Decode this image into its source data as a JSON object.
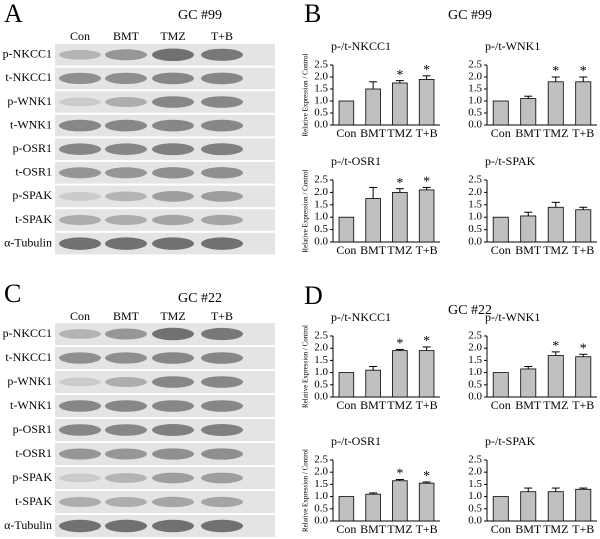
{
  "figure": {
    "panels": [
      {
        "letter": "A",
        "title": "GC #99",
        "lanes": [
          "Con",
          "BMT",
          "TMZ",
          "T+B"
        ],
        "rows": [
          "p-NKCC1",
          "t-NKCC1",
          "p-WNK1",
          "t-WNK1",
          "p-OSR1",
          "t-OSR1",
          "p-SPAK",
          "t-SPAK",
          "α-Tubulin"
        ]
      },
      {
        "letter": "B",
        "title": "GC #99"
      },
      {
        "letter": "C",
        "title": "GC #22",
        "lanes": [
          "Con",
          "BMT",
          "TMZ",
          "T+B"
        ],
        "rows": [
          "p-NKCC1",
          "t-NKCC1",
          "p-WNK1",
          "t-WNK1",
          "p-OSR1",
          "t-OSR1",
          "p-SPAK",
          "t-SPAK",
          "α-Tubulin"
        ]
      },
      {
        "letter": "D",
        "title": "GC #22"
      }
    ]
  },
  "chart_data": [
    {
      "type": "bar",
      "title": "p-/t-NKCC1",
      "ylabel": "Relative Expression / Control",
      "categories": [
        "Con",
        "BMT",
        "TMZ",
        "T+B"
      ],
      "values": [
        1.0,
        1.5,
        1.75,
        1.9
      ],
      "errors": [
        null,
        0.3,
        0.1,
        0.15
      ],
      "annotations": [
        null,
        null,
        "*",
        "*"
      ],
      "color": "#c0c0c0",
      "ylim": [
        0,
        2.5
      ],
      "yticks": [
        {
          "value": 0,
          "label": "0.0"
        },
        {
          "value": 0.5,
          "label": "0.5"
        },
        {
          "value": 1,
          "label": "1.0"
        },
        {
          "value": 1.5,
          "label": "1.5"
        },
        {
          "value": 2,
          "label": "2.0"
        },
        {
          "value": 2.5,
          "label": "2.5"
        }
      ]
    },
    {
      "type": "bar",
      "title": "p-/t-WNK1",
      "categories": [
        "Con",
        "BMT",
        "TMZ",
        "T+B"
      ],
      "values": [
        1.0,
        1.1,
        1.8,
        1.8
      ],
      "errors": [
        null,
        0.1,
        0.2,
        0.2
      ],
      "annotations": [
        null,
        null,
        "*",
        "*"
      ],
      "color": "#c0c0c0",
      "ylim": [
        0,
        2.5
      ],
      "yticks": [
        {
          "value": 0,
          "label": "0.0"
        },
        {
          "value": 0.5,
          "label": "0.5"
        },
        {
          "value": 1,
          "label": "1.0"
        },
        {
          "value": 1.5,
          "label": "1.5"
        },
        {
          "value": 2,
          "label": "2.0"
        },
        {
          "value": 2.5,
          "label": "2.5"
        }
      ]
    },
    {
      "type": "bar",
      "title": "p-/t-OSR1",
      "ylabel": "Relative Expression / Control",
      "categories": [
        "Con",
        "BMT",
        "TMZ",
        "T+B"
      ],
      "values": [
        1.0,
        1.75,
        2.0,
        2.1
      ],
      "errors": [
        null,
        0.45,
        0.15,
        0.1
      ],
      "annotations": [
        null,
        null,
        "*",
        "*"
      ],
      "color": "#c0c0c0",
      "ylim": [
        0,
        2.5
      ],
      "yticks": [
        {
          "value": 0,
          "label": "0.0"
        },
        {
          "value": 0.5,
          "label": "0.5"
        },
        {
          "value": 1,
          "label": "1.0"
        },
        {
          "value": 1.5,
          "label": "1.5"
        },
        {
          "value": 2,
          "label": "2.0"
        },
        {
          "value": 2.5,
          "label": "2.5"
        }
      ]
    },
    {
      "type": "bar",
      "title": "p-/t-SPAK",
      "categories": [
        "Con",
        "BMT",
        "TMZ",
        "T+B"
      ],
      "values": [
        1.0,
        1.05,
        1.4,
        1.3
      ],
      "errors": [
        null,
        0.15,
        0.2,
        0.1
      ],
      "annotations": [
        null,
        null,
        null,
        null
      ],
      "color": "#c0c0c0",
      "ylim": [
        0,
        2.5
      ],
      "yticks": [
        {
          "value": 0,
          "label": "0.0"
        },
        {
          "value": 0.5,
          "label": "0.5"
        },
        {
          "value": 1,
          "label": "1.0"
        },
        {
          "value": 1.5,
          "label": "1.5"
        },
        {
          "value": 2,
          "label": "2.0"
        },
        {
          "value": 2.5,
          "label": "2.5"
        }
      ]
    },
    {
      "type": "bar",
      "title": "p-/t-NKCC1",
      "ylabel": "Relative Expression / Control",
      "categories": [
        "Con",
        "BMT",
        "TMZ",
        "T+B"
      ],
      "values": [
        1.0,
        1.1,
        1.9,
        1.9
      ],
      "errors": [
        null,
        0.15,
        0.05,
        0.15
      ],
      "annotations": [
        null,
        null,
        "*",
        "*"
      ],
      "color": "#c0c0c0",
      "ylim": [
        0,
        2.5
      ],
      "yticks": [
        {
          "value": 0,
          "label": "0.0"
        },
        {
          "value": 0.5,
          "label": "0.5"
        },
        {
          "value": 1,
          "label": "1.0"
        },
        {
          "value": 1.5,
          "label": "1.5"
        },
        {
          "value": 2,
          "label": "2.0"
        },
        {
          "value": 2.5,
          "label": "2.5"
        }
      ]
    },
    {
      "type": "bar",
      "title": "p-/t-WNK1",
      "categories": [
        "Con",
        "BMT",
        "TMZ",
        "T+B"
      ],
      "values": [
        1.0,
        1.15,
        1.7,
        1.65
      ],
      "errors": [
        null,
        0.1,
        0.15,
        0.1
      ],
      "annotations": [
        null,
        null,
        "*",
        "*"
      ],
      "color": "#c0c0c0",
      "ylim": [
        0,
        2.5
      ],
      "yticks": [
        {
          "value": 0,
          "label": "0.0"
        },
        {
          "value": 0.5,
          "label": "0.5"
        },
        {
          "value": 1,
          "label": "1.0"
        },
        {
          "value": 1.5,
          "label": "1.5"
        },
        {
          "value": 2,
          "label": "2.0"
        },
        {
          "value": 2.5,
          "label": "2.5"
        }
      ]
    },
    {
      "type": "bar",
      "title": "p-/t-OSR1",
      "ylabel": "Relative Expression / Control",
      "categories": [
        "Con",
        "BMT",
        "TMZ",
        "T+B"
      ],
      "values": [
        1.0,
        1.1,
        1.65,
        1.55
      ],
      "errors": [
        null,
        0.05,
        0.05,
        0.05
      ],
      "annotations": [
        null,
        null,
        "*",
        "*"
      ],
      "color": "#c0c0c0",
      "ylim": [
        0,
        2.5
      ],
      "yticks": [
        {
          "value": 0,
          "label": "0.0"
        },
        {
          "value": 0.5,
          "label": "0.5"
        },
        {
          "value": 1,
          "label": "1.0"
        },
        {
          "value": 1.5,
          "label": "1.5"
        },
        {
          "value": 2,
          "label": "2.0"
        },
        {
          "value": 2.5,
          "label": "2.5"
        }
      ]
    },
    {
      "type": "bar",
      "title": "p-/t-SPAK",
      "categories": [
        "Con",
        "BMT",
        "TMZ",
        "T+B"
      ],
      "values": [
        1.0,
        1.2,
        1.2,
        1.3
      ],
      "errors": [
        null,
        0.15,
        0.15,
        0.05
      ],
      "annotations": [
        null,
        null,
        null,
        null
      ],
      "color": "#c0c0c0",
      "ylim": [
        0,
        2.5
      ],
      "yticks": [
        {
          "value": 0,
          "label": "0.0"
        },
        {
          "value": 0.5,
          "label": "0.5"
        },
        {
          "value": 1,
          "label": "1.0"
        },
        {
          "value": 1.5,
          "label": "1.5"
        },
        {
          "value": 2,
          "label": "2.0"
        },
        {
          "value": 2.5,
          "label": "2.5"
        }
      ]
    }
  ]
}
